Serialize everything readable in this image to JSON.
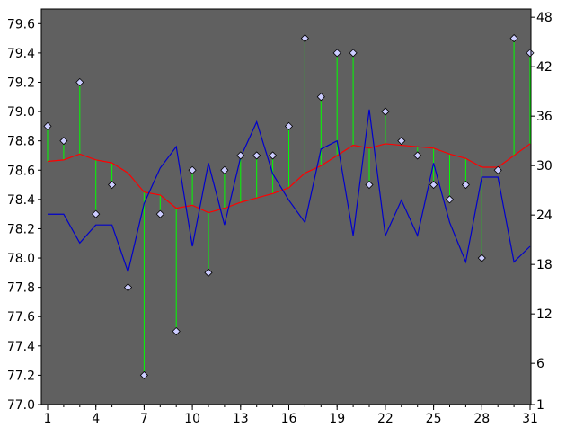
{
  "chart_data": {
    "type": "line",
    "title": "",
    "xlabel": "",
    "ylabel": "",
    "x": [
      1,
      2,
      3,
      4,
      5,
      6,
      7,
      8,
      9,
      10,
      11,
      12,
      13,
      14,
      15,
      16,
      17,
      18,
      19,
      20,
      21,
      22,
      23,
      24,
      25,
      26,
      27,
      28,
      29,
      30,
      31
    ],
    "xticks": [
      1,
      4,
      7,
      10,
      13,
      16,
      19,
      22,
      25,
      28,
      31
    ],
    "xlim": [
      1,
      31
    ],
    "ylim_left": [
      77.0,
      79.7
    ],
    "yticks_left": [
      77.0,
      77.2,
      77.4,
      77.6,
      77.8,
      78.0,
      78.2,
      78.4,
      78.6,
      78.8,
      79.0,
      79.2,
      79.4,
      79.6
    ],
    "ylim_right": [
      1,
      49
    ],
    "yticks_right": [
      1,
      6,
      12,
      18,
      24,
      30,
      36,
      42,
      48
    ],
    "grid": false,
    "background": "#606060",
    "series": [
      {
        "role": "markers",
        "axis": "left",
        "color": "#ccccff",
        "values": [
          78.9,
          78.8,
          79.2,
          78.3,
          78.5,
          77.8,
          77.2,
          78.3,
          77.5,
          78.6,
          77.9,
          78.6,
          78.7,
          78.7,
          78.7,
          78.9,
          79.5,
          79.1,
          79.4,
          79.4,
          78.5,
          79.0,
          78.8,
          78.7,
          78.5,
          78.4,
          78.5,
          78.0,
          78.6,
          79.5,
          79.4
        ]
      },
      {
        "role": "moving-average",
        "axis": "left",
        "color": "#ff0000",
        "values": [
          78.66,
          78.67,
          78.71,
          78.67,
          78.65,
          78.58,
          78.45,
          78.43,
          78.34,
          78.36,
          78.31,
          78.34,
          78.38,
          78.41,
          78.44,
          78.48,
          78.58,
          78.63,
          78.7,
          78.77,
          78.75,
          78.78,
          78.77,
          78.76,
          78.75,
          78.71,
          78.68,
          78.62,
          78.62,
          78.7,
          78.78
        ]
      },
      {
        "role": "line",
        "axis": "right",
        "color": "#0000cc",
        "values": [
          24.1,
          24.1,
          20.6,
          22.8,
          22.8,
          17.1,
          25.4,
          29.7,
          32.3,
          20.2,
          30.3,
          22.8,
          31.0,
          35.3,
          29.0,
          25.8,
          23.1,
          32.0,
          33.0,
          21.5,
          36.8,
          21.5,
          25.8,
          21.5,
          30.3,
          23.1,
          18.3,
          28.6,
          28.6,
          18.3,
          20.2
        ]
      }
    ]
  }
}
